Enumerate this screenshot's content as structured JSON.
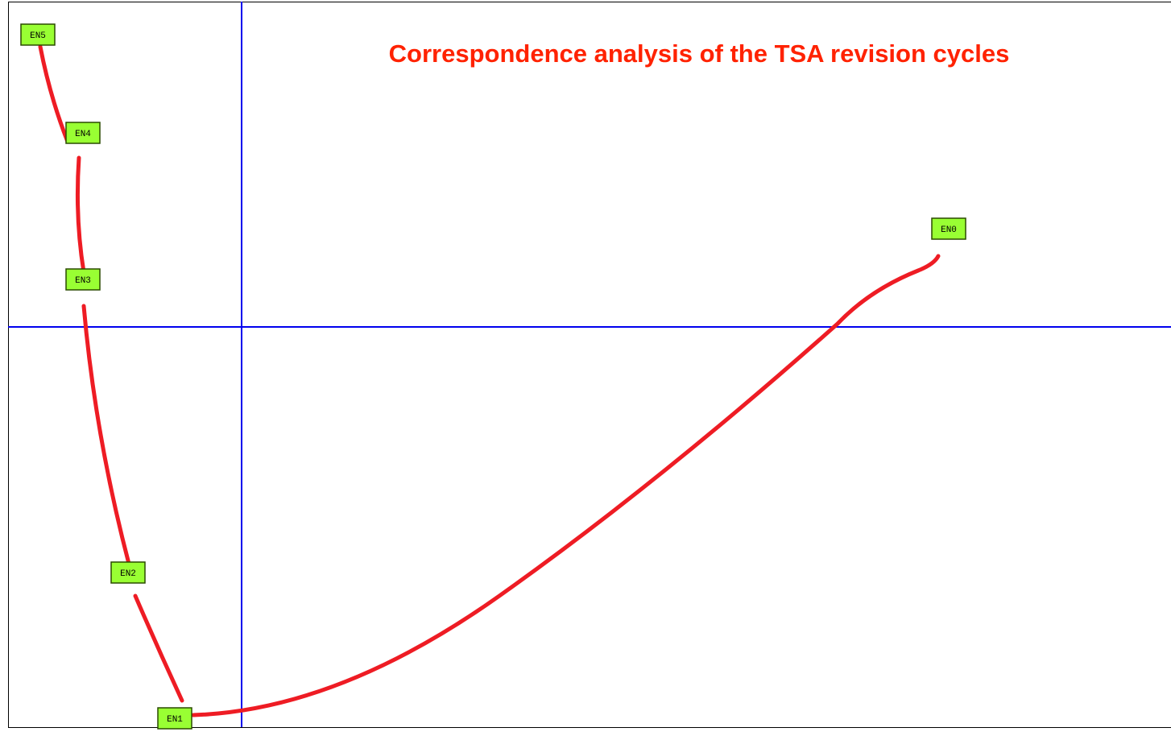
{
  "title": "Correspondence analysis of the TSA revision cycles",
  "nodes": [
    {
      "label": "EN5"
    },
    {
      "label": "EN4"
    },
    {
      "label": "EN3"
    },
    {
      "label": "EN2"
    },
    {
      "label": "EN1"
    },
    {
      "label": "EN0"
    }
  ]
}
